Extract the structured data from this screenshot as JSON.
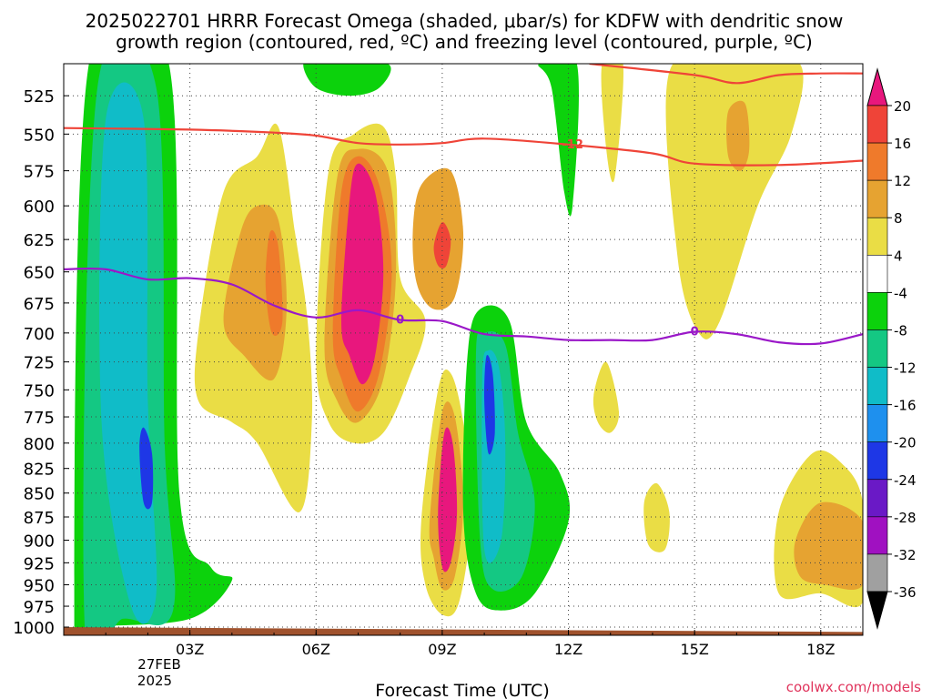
{
  "chart_data": {
    "type": "heatmap",
    "title_line1": "2025022701 HRRR Forecast Omega (shaded, μbar/s) for KDFW with dendritic snow",
    "title_line2": "growth region (contoured, red, ºC) and freezing level (contoured, purple, ºC)",
    "xlabel": "Forecast Time (UTC)",
    "ylabel": "",
    "watermark": "coolwx.com/models",
    "x_ticks": [
      {
        "hour": 3,
        "label": "03Z"
      },
      {
        "hour": 6,
        "label": "06Z"
      },
      {
        "hour": 9,
        "label": "09Z"
      },
      {
        "hour": 12,
        "label": "12Z"
      },
      {
        "hour": 15,
        "label": "15Z"
      },
      {
        "hour": 18,
        "label": "18Z"
      }
    ],
    "date_label_line1": "27FEB",
    "date_label_line2": "2025",
    "xlim": [
      0.0,
      19.0
    ],
    "y_ticks": [
      525,
      550,
      575,
      600,
      625,
      650,
      675,
      700,
      725,
      750,
      775,
      800,
      825,
      850,
      875,
      900,
      925,
      950,
      975,
      1000
    ],
    "ylim": [
      1010,
      505
    ],
    "y_scale": "log-pressure",
    "grid": true,
    "colorbar": {
      "position": "right",
      "levels": [
        20,
        16,
        12,
        8,
        4,
        -4,
        -8,
        -12,
        -16,
        -20,
        -24,
        -28,
        -32,
        -36
      ],
      "colors": [
        "#e8177d",
        "#ef4438",
        "#ef7a2b",
        "#e6a331",
        "#eadd45",
        "#ffffff",
        "#0cd20c",
        "#14c883",
        "#10bcc8",
        "#1e90ee",
        "#1e37e6",
        "#6a19c6",
        "#a011c1",
        "#a0a0a0",
        "#000000"
      ]
    },
    "snow_growth_contour": {
      "color": "#ef4438",
      "label": "-12",
      "upper_label": "",
      "points": [
        [
          0.0,
          546
        ],
        [
          3.0,
          547
        ],
        [
          5.0,
          549
        ],
        [
          6.0,
          551
        ],
        [
          7.0,
          556
        ],
        [
          8.0,
          557
        ],
        [
          9.0,
          556
        ],
        [
          10.0,
          553
        ],
        [
          12.0,
          557
        ],
        [
          14.0,
          563
        ],
        [
          15.0,
          570
        ],
        [
          17.0,
          571
        ],
        [
          19.0,
          568
        ]
      ],
      "upper_points": [
        [
          12.5,
          505
        ],
        [
          15.0,
          512
        ],
        [
          16.0,
          517
        ],
        [
          17.0,
          512
        ],
        [
          18.0,
          511
        ],
        [
          19.0,
          511
        ]
      ]
    },
    "freezing_level": {
      "color": "#9a18c8",
      "label": "0",
      "points": [
        [
          0.0,
          648
        ],
        [
          1.0,
          648
        ],
        [
          2.0,
          656
        ],
        [
          3.0,
          655
        ],
        [
          4.0,
          660
        ],
        [
          5.0,
          677
        ],
        [
          6.0,
          687
        ],
        [
          7.0,
          681
        ],
        [
          8.0,
          689
        ],
        [
          9.0,
          690
        ],
        [
          10.0,
          701
        ],
        [
          11.0,
          703
        ],
        [
          12.0,
          706
        ],
        [
          13.0,
          706
        ],
        [
          14.0,
          706
        ],
        [
          15.0,
          699
        ],
        [
          16.0,
          701
        ],
        [
          17.0,
          708
        ],
        [
          18.0,
          709
        ],
        [
          19.0,
          701
        ]
      ]
    },
    "omega_regions": [
      {
        "name": "upward-column-left",
        "value": -8,
        "poly": [
          [
            0.25,
            1010
          ],
          [
            0.6,
            505
          ],
          [
            2.5,
            505
          ],
          [
            2.75,
            850
          ],
          [
            3.5,
            930
          ],
          [
            4.0,
            945
          ],
          [
            3.0,
            990
          ],
          [
            0.6,
            1000
          ]
        ]
      },
      {
        "name": "upward-column-left-inner",
        "value": -12,
        "poly": [
          [
            0.5,
            1000
          ],
          [
            0.8,
            520
          ],
          [
            2.2,
            520
          ],
          [
            2.4,
            800
          ],
          [
            2.6,
            980
          ],
          [
            1.4,
            990
          ]
        ]
      },
      {
        "name": "upward-column-left-core",
        "value": -16,
        "poly": [
          [
            0.9,
            780
          ],
          [
            1.0,
            540
          ],
          [
            1.9,
            540
          ],
          [
            2.0,
            760
          ],
          [
            2.2,
            960
          ],
          [
            1.6,
            975
          ]
        ]
      },
      {
        "name": "upward-column-left-max",
        "value": -24,
        "poly": [
          [
            1.8,
            805
          ],
          [
            1.9,
            785
          ],
          [
            2.1,
            810
          ],
          [
            2.1,
            860
          ],
          [
            1.9,
            860
          ]
        ]
      },
      {
        "name": "downward-left-lobe",
        "value": 4,
        "poly": [
          [
            3.2,
            700
          ],
          [
            3.8,
            590
          ],
          [
            4.6,
            565
          ],
          [
            5.1,
            545
          ],
          [
            5.5,
            620
          ],
          [
            5.8,
            690
          ],
          [
            5.9,
            780
          ],
          [
            5.6,
            870
          ],
          [
            4.6,
            800
          ],
          [
            4.0,
            780
          ],
          [
            3.2,
            760
          ]
        ]
      },
      {
        "name": "downward-left-lobe-8",
        "value": 8,
        "poly": [
          [
            3.8,
            690
          ],
          [
            4.2,
            620
          ],
          [
            4.6,
            600
          ],
          [
            5.1,
            610
          ],
          [
            5.3,
            680
          ],
          [
            5.0,
            740
          ],
          [
            4.3,
            720
          ]
        ]
      },
      {
        "name": "downward-left-lobe-12",
        "value": 12,
        "poly": [
          [
            4.8,
            660
          ],
          [
            4.9,
            620
          ],
          [
            5.1,
            630
          ],
          [
            5.2,
            690
          ],
          [
            4.95,
            700
          ]
        ]
      },
      {
        "name": "downward-main-column",
        "value": 4,
        "poly": [
          [
            6.0,
            720
          ],
          [
            6.3,
            575
          ],
          [
            6.9,
            550
          ],
          [
            7.6,
            545
          ],
          [
            7.9,
            580
          ],
          [
            8.0,
            655
          ],
          [
            8.6,
            690
          ],
          [
            8.2,
            740
          ],
          [
            7.6,
            790
          ],
          [
            6.9,
            800
          ],
          [
            6.3,
            780
          ]
        ]
      },
      {
        "name": "downward-main-column-8",
        "value": 8,
        "poly": [
          [
            6.2,
            710
          ],
          [
            6.5,
            580
          ],
          [
            7.0,
            560
          ],
          [
            7.7,
            575
          ],
          [
            7.9,
            650
          ],
          [
            7.6,
            740
          ],
          [
            7.0,
            780
          ],
          [
            6.5,
            760
          ]
        ]
      },
      {
        "name": "downward-main-column-12",
        "value": 12,
        "poly": [
          [
            6.4,
            700
          ],
          [
            6.6,
            590
          ],
          [
            7.0,
            565
          ],
          [
            7.5,
            585
          ],
          [
            7.8,
            650
          ],
          [
            7.5,
            735
          ],
          [
            7.0,
            770
          ],
          [
            6.6,
            740
          ]
        ]
      },
      {
        "name": "downward-main-column-20",
        "value": 20,
        "poly": [
          [
            6.6,
            690
          ],
          [
            6.8,
            595
          ],
          [
            7.0,
            570
          ],
          [
            7.4,
            590
          ],
          [
            7.6,
            650
          ],
          [
            7.4,
            720
          ],
          [
            7.1,
            745
          ],
          [
            6.8,
            720
          ]
        ]
      },
      {
        "name": "downward-mid-lobe",
        "value": 8,
        "poly": [
          [
            8.3,
            620
          ],
          [
            8.5,
            585
          ],
          [
            9.2,
            575
          ],
          [
            9.5,
            620
          ],
          [
            9.3,
            670
          ],
          [
            8.8,
            680
          ],
          [
            8.4,
            660
          ]
        ]
      },
      {
        "name": "downward-mid-lobe-16",
        "value": 16,
        "poly": [
          [
            8.8,
            630
          ],
          [
            9.0,
            612
          ],
          [
            9.2,
            625
          ],
          [
            9.1,
            645
          ],
          [
            8.9,
            645
          ]
        ]
      },
      {
        "name": "downward-lower-column",
        "value": 4,
        "poly": [
          [
            8.5,
            880
          ],
          [
            8.9,
            750
          ],
          [
            9.2,
            735
          ],
          [
            9.5,
            780
          ],
          [
            9.7,
            870
          ],
          [
            9.4,
            970
          ],
          [
            9.0,
            985
          ],
          [
            8.6,
            950
          ]
        ]
      },
      {
        "name": "downward-lower-column-8",
        "value": 8,
        "poly": [
          [
            8.7,
            880
          ],
          [
            9.0,
            770
          ],
          [
            9.3,
            775
          ],
          [
            9.5,
            860
          ],
          [
            9.3,
            940
          ],
          [
            9.0,
            955
          ],
          [
            8.8,
            920
          ]
        ]
      },
      {
        "name": "downward-lower-column-20",
        "value": 20,
        "poly": [
          [
            8.9,
            870
          ],
          [
            9.05,
            790
          ],
          [
            9.25,
            800
          ],
          [
            9.35,
            870
          ],
          [
            9.2,
            925
          ],
          [
            9.0,
            930
          ]
        ]
      },
      {
        "name": "upward-mid-column",
        "value": -8,
        "poly": [
          [
            9.6,
            720
          ],
          [
            9.9,
            680
          ],
          [
            10.6,
            690
          ],
          [
            11.0,
            780
          ],
          [
            11.8,
            830
          ],
          [
            12.0,
            880
          ],
          [
            11.2,
            960
          ],
          [
            10.4,
            980
          ],
          [
            9.8,
            960
          ],
          [
            9.5,
            870
          ]
        ]
      },
      {
        "name": "upward-mid-column-12",
        "value": -12,
        "poly": [
          [
            9.8,
            720
          ],
          [
            10.0,
            700
          ],
          [
            10.5,
            710
          ],
          [
            10.8,
            790
          ],
          [
            11.2,
            860
          ],
          [
            10.9,
            940
          ],
          [
            10.2,
            955
          ],
          [
            9.9,
            900
          ]
        ]
      },
      {
        "name": "upward-mid-column-16",
        "value": -16,
        "poly": [
          [
            9.95,
            740
          ],
          [
            10.1,
            715
          ],
          [
            10.35,
            730
          ],
          [
            10.5,
            800
          ],
          [
            10.4,
            900
          ],
          [
            10.0,
            910
          ]
        ]
      },
      {
        "name": "upward-mid-column-24",
        "value": -24,
        "poly": [
          [
            10.0,
            760
          ],
          [
            10.05,
            720
          ],
          [
            10.2,
            735
          ],
          [
            10.25,
            790
          ],
          [
            10.1,
            810
          ]
        ]
      },
      {
        "name": "upward-top-center",
        "value": -8,
        "poly": [
          [
            5.7,
            505
          ],
          [
            6.2,
            505
          ],
          [
            7.7,
            505
          ],
          [
            7.5,
            520
          ],
          [
            6.8,
            525
          ],
          [
            6.0,
            520
          ]
        ]
      },
      {
        "name": "upward-top-right",
        "value": -8,
        "poly": [
          [
            11.3,
            505
          ],
          [
            12.2,
            505
          ],
          [
            12.1,
            600
          ],
          [
            11.9,
            590
          ],
          [
            11.6,
            520
          ]
        ]
      },
      {
        "name": "downward-upper-right",
        "value": 4,
        "poly": [
          [
            12.8,
            505
          ],
          [
            13.3,
            505
          ],
          [
            13.1,
            580
          ],
          [
            12.9,
            560
          ]
        ]
      },
      {
        "name": "downward-right-column",
        "value": 4,
        "poly": [
          [
            14.4,
            510
          ],
          [
            16.0,
            505
          ],
          [
            17.5,
            505
          ],
          [
            17.3,
            550
          ],
          [
            16.5,
            600
          ],
          [
            15.6,
            690
          ],
          [
            15.1,
            700
          ],
          [
            14.6,
            640
          ]
        ]
      },
      {
        "name": "downward-right-column-8",
        "value": 8,
        "poly": [
          [
            15.8,
            535
          ],
          [
            16.2,
            530
          ],
          [
            16.3,
            560
          ],
          [
            16.1,
            575
          ],
          [
            15.8,
            565
          ]
        ]
      },
      {
        "name": "downward-right-small",
        "value": 4,
        "poly": [
          [
            12.6,
            755
          ],
          [
            12.9,
            725
          ],
          [
            13.2,
            770
          ],
          [
            13.0,
            790
          ],
          [
            12.7,
            780
          ]
        ]
      },
      {
        "name": "downward-right-blob",
        "value": 4,
        "poly": [
          [
            13.8,
            860
          ],
          [
            14.1,
            840
          ],
          [
            14.4,
            870
          ],
          [
            14.3,
            910
          ],
          [
            13.9,
            905
          ]
        ]
      },
      {
        "name": "downward-far-right",
        "value": 4,
        "poly": [
          [
            17.0,
            870
          ],
          [
            17.8,
            810
          ],
          [
            18.5,
            820
          ],
          [
            19.0,
            860
          ],
          [
            19.0,
            970
          ],
          [
            18.0,
            960
          ],
          [
            17.0,
            960
          ]
        ]
      },
      {
        "name": "downward-far-right-8",
        "value": 8,
        "poly": [
          [
            17.4,
            900
          ],
          [
            18.0,
            860
          ],
          [
            19.0,
            880
          ],
          [
            19.0,
            950
          ],
          [
            18.1,
            950
          ],
          [
            17.5,
            940
          ]
        ]
      }
    ],
    "ground": {
      "color": "#a0522d",
      "points": [
        [
          0.0,
          1000
        ],
        [
          19.0,
          1006
        ]
      ]
    }
  }
}
